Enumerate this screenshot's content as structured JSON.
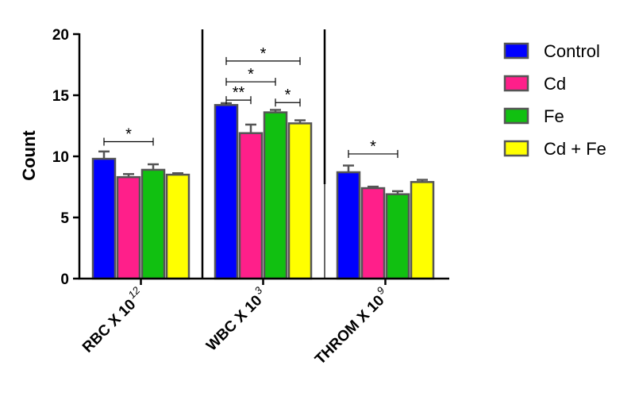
{
  "chart_data": {
    "type": "bar",
    "title": "",
    "xlabel": "",
    "ylabel": "Count",
    "ylim": [
      0,
      20
    ],
    "yticks": [
      0,
      5,
      10,
      15,
      20
    ],
    "grid": false,
    "legend_position": "top-right",
    "categories": [
      {
        "main": "RBC X 10",
        "sup": "12"
      },
      {
        "main": "WBC X 10",
        "sup": "3"
      },
      {
        "main": "THROM X 10",
        "sup": "9"
      }
    ],
    "series": [
      {
        "name": "Control",
        "color": "#0000FF",
        "values": [
          9.8,
          14.2,
          8.7
        ],
        "errors": [
          0.6,
          0.15,
          0.55
        ]
      },
      {
        "name": "Cd",
        "color": "#FF1F8A",
        "values": [
          8.3,
          11.9,
          7.4
        ],
        "errors": [
          0.25,
          0.7,
          0.12
        ]
      },
      {
        "name": "Fe",
        "color": "#11C011",
        "values": [
          8.9,
          13.6,
          6.9
        ],
        "errors": [
          0.45,
          0.2,
          0.25
        ]
      },
      {
        "name": "Cd + Fe",
        "color": "#FFFF00",
        "values": [
          8.5,
          12.7,
          7.9
        ],
        "errors": [
          0.12,
          0.25,
          0.18
        ]
      }
    ],
    "annotations": [
      {
        "category": 0,
        "from": 0,
        "to": 2,
        "label": "*",
        "y": 11.2
      },
      {
        "category": 1,
        "from": 0,
        "to": 3,
        "label": "*",
        "y": 17.8
      },
      {
        "category": 1,
        "from": 0,
        "to": 2,
        "label": "*",
        "y": 16.1
      },
      {
        "category": 1,
        "from": 0,
        "to": 1,
        "label": "**",
        "y": 14.6
      },
      {
        "category": 1,
        "from": 2,
        "to": 3,
        "label": "*",
        "y": 14.4
      },
      {
        "category": 2,
        "from": 0,
        "to": 2,
        "label": "*",
        "y": 10.2
      }
    ]
  }
}
